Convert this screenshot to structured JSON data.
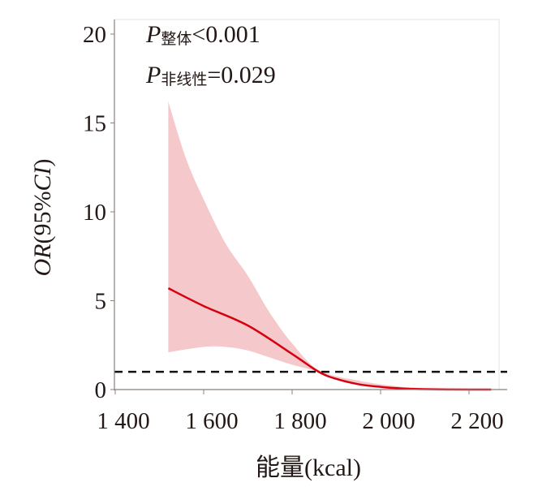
{
  "chart_data": {
    "type": "line",
    "title": "",
    "xlabel": "能量(kcal)",
    "ylabel_italic": "OR",
    "ylabel_paren_open": "(95%",
    "ylabel_ci": "CI",
    "ylabel_paren_close": ")",
    "xlim": [
      1400,
      2270
    ],
    "ylim": [
      0,
      20
    ],
    "xticks": [
      1400,
      1600,
      1800,
      2000,
      2200
    ],
    "xtick_labels": [
      "1 400",
      "1 600",
      "1 800",
      "2 000",
      "2 200"
    ],
    "yticks": [
      0,
      5,
      10,
      15,
      20
    ],
    "ytick_labels": [
      "0",
      "5",
      "10",
      "15",
      "20"
    ],
    "reference_line": 1,
    "annotations": [
      {
        "p": "P",
        "sub": "整体",
        "rest": "<0.001"
      },
      {
        "p": "P",
        "sub": "非线性",
        "rest": "=0.029"
      }
    ],
    "series": [
      {
        "name": "OR",
        "color": "#d7000f",
        "x": [
          1520,
          1600,
          1700,
          1800,
          1860,
          1900,
          1950,
          2000,
          2050,
          2100,
          2200,
          2250
        ],
        "y": [
          5.7,
          4.7,
          3.6,
          2.0,
          1.0,
          0.6,
          0.3,
          0.15,
          0.06,
          0.02,
          0.0,
          0.0
        ]
      },
      {
        "name": "95% CI upper",
        "color": "#f5c9cb",
        "x": [
          1520,
          1560,
          1600,
          1650,
          1700,
          1750,
          1800,
          1860,
          1950,
          2050,
          2150,
          2250
        ],
        "y": [
          16.2,
          13.0,
          10.7,
          8.2,
          6.4,
          4.3,
          2.6,
          1.1,
          0.5,
          0.15,
          0.03,
          0.0
        ]
      },
      {
        "name": "95% CI lower",
        "color": "#f5c9cb",
        "x": [
          1520,
          1600,
          1650,
          1700,
          1750,
          1800,
          1860,
          1950,
          2050,
          2150,
          2250
        ],
        "y": [
          2.1,
          2.4,
          2.4,
          2.2,
          1.8,
          1.4,
          1.0,
          0.3,
          0.05,
          0.01,
          0.0
        ]
      }
    ]
  }
}
